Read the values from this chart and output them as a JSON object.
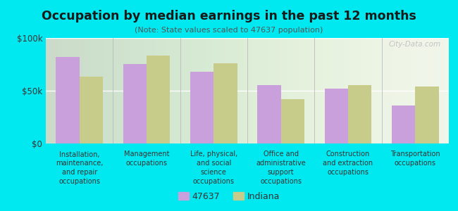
{
  "title": "Occupation by median earnings in the past 12 months",
  "subtitle": "(Note: State values scaled to 47637 population)",
  "categories": [
    "Installation,\nmaintenance,\nand repair\noccupations",
    "Management\noccupations",
    "Life, physical,\nand social\nscience\noccupations",
    "Office and\nadministrative\nsupport\noccupations",
    "Construction\nand extraction\noccupations",
    "Transportation\noccupations"
  ],
  "values_47637": [
    82000,
    75000,
    68000,
    55000,
    52000,
    36000
  ],
  "values_indiana": [
    63000,
    83000,
    76000,
    42000,
    55000,
    54000
  ],
  "color_47637": "#c9a0dc",
  "color_indiana": "#c8cc8a",
  "background_color": "#00e8f0",
  "ylim": [
    0,
    100000
  ],
  "yticks": [
    0,
    50000,
    100000
  ],
  "ytick_labels": [
    "$0",
    "$50k",
    "$100k"
  ],
  "legend_label_47637": "47637",
  "legend_label_indiana": "Indiana",
  "watermark": "City-Data.com"
}
